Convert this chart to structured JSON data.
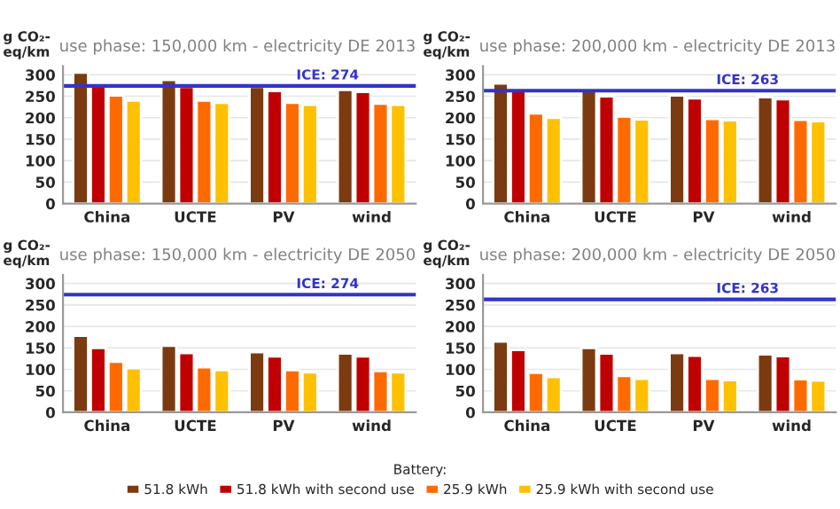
{
  "chart_data": [
    {
      "type": "bar",
      "title": "use phase: 150,000 km - electricity DE 2013",
      "ylabel": "g CO₂-\neq/km",
      "categories": [
        "China",
        "UCTE",
        "PV",
        "wind"
      ],
      "ylim": [
        0,
        320
      ],
      "yticks": [
        0,
        50,
        100,
        150,
        200,
        250,
        300
      ],
      "grid": "y",
      "legend": "bottom",
      "legend_title": "Battery:",
      "series": [
        {
          "name": "51.8 kWh",
          "color": "#7b3a10",
          "values": [
            305,
            288,
            272,
            265
          ]
        },
        {
          "name": "51.8 kWh with second use",
          "color": "#c00000",
          "values": [
            280,
            272,
            262,
            260
          ]
        },
        {
          "name": "25.9 kWh",
          "color": "#ff6a00",
          "values": [
            252,
            240,
            235,
            233
          ]
        },
        {
          "name": "25.9 kWh with second use",
          "color": "#ffc000",
          "values": [
            240,
            235,
            230,
            230
          ]
        }
      ],
      "ref_lines": [
        {
          "axis": "y",
          "value": 274,
          "label": "ICE: 274",
          "color": "#3333cc"
        }
      ]
    },
    {
      "type": "bar",
      "title": "use phase: 200,000 km - electricity DE 2013",
      "ylabel": "g CO₂-\neq/km",
      "categories": [
        "China",
        "UCTE",
        "PV",
        "wind"
      ],
      "ylim": [
        0,
        320
      ],
      "yticks": [
        0,
        50,
        100,
        150,
        200,
        250,
        300
      ],
      "grid": "y",
      "series": [
        {
          "color": "#7b3a10",
          "values": [
            280,
            262,
            252,
            248
          ]
        },
        {
          "color": "#c00000",
          "values": [
            262,
            250,
            245,
            243
          ]
        },
        {
          "color": "#ff6a00",
          "values": [
            210,
            203,
            197,
            195
          ]
        },
        {
          "color": "#ffc000",
          "values": [
            200,
            196,
            194,
            192
          ]
        }
      ],
      "ref_lines": [
        {
          "axis": "y",
          "value": 263,
          "label": "ICE: 263",
          "color": "#3333cc"
        }
      ]
    },
    {
      "type": "bar",
      "title": "use phase: 150,000 km - electricity DE 2050",
      "ylabel": "g CO₂-\neq/km",
      "categories": [
        "China",
        "UCTE",
        "PV",
        "wind"
      ],
      "ylim": [
        0,
        320
      ],
      "yticks": [
        0,
        50,
        100,
        150,
        200,
        250,
        300
      ],
      "grid": "y",
      "series": [
        {
          "color": "#7b3a10",
          "values": [
            178,
            155,
            140,
            137
          ]
        },
        {
          "color": "#c00000",
          "values": [
            150,
            138,
            130,
            130
          ]
        },
        {
          "color": "#ff6a00",
          "values": [
            118,
            105,
            98,
            96
          ]
        },
        {
          "color": "#ffc000",
          "values": [
            103,
            98,
            93,
            93
          ]
        }
      ],
      "ref_lines": [
        {
          "axis": "y",
          "value": 274,
          "label": "ICE: 274",
          "color": "#3333cc"
        }
      ]
    },
    {
      "type": "bar",
      "title": "use phase: 200,000 km - electricity DE 2050",
      "ylabel": "g CO₂-\neq/km",
      "categories": [
        "China",
        "UCTE",
        "PV",
        "wind"
      ],
      "ylim": [
        0,
        320
      ],
      "yticks": [
        0,
        50,
        100,
        150,
        200,
        250,
        300
      ],
      "grid": "y",
      "series": [
        {
          "color": "#7b3a10",
          "values": [
            165,
            150,
            138,
            135
          ]
        },
        {
          "color": "#c00000",
          "values": [
            145,
            137,
            132,
            131
          ]
        },
        {
          "color": "#ff6a00",
          "values": [
            92,
            85,
            78,
            77
          ]
        },
        {
          "color": "#ffc000",
          "values": [
            82,
            78,
            75,
            74
          ]
        }
      ],
      "ref_lines": [
        {
          "axis": "y",
          "value": 263,
          "label": "ICE: 263",
          "color": "#3333cc"
        }
      ]
    }
  ]
}
